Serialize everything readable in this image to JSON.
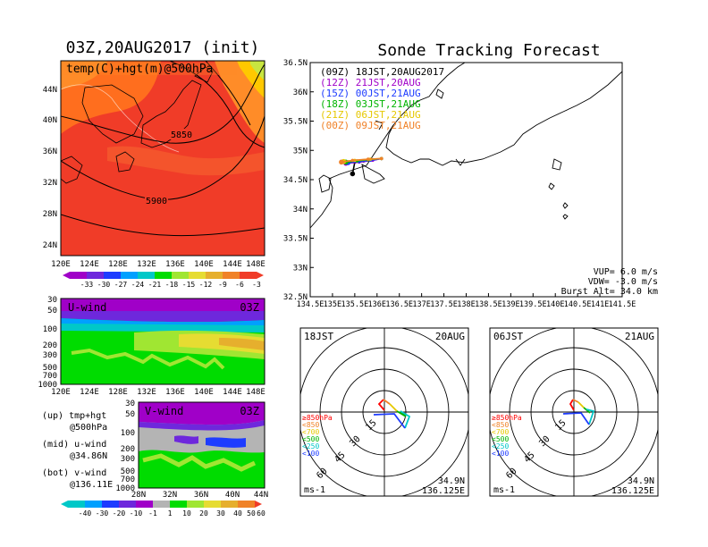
{
  "left_title": "03Z,20AUG2017 (init)",
  "right_title": "Sonde Tracking Forecast",
  "top_map": {
    "label": "temp(C)+hgt(m)@500hPa",
    "contours": [
      "5850",
      "5900"
    ],
    "lat_ticks": [
      "44N",
      "40N",
      "36N",
      "32N",
      "28N",
      "24N"
    ],
    "lon_ticks": [
      "120E",
      "124E",
      "128E",
      "132E",
      "136E",
      "140E",
      "144E",
      "148E"
    ],
    "colorbar": [
      "-33",
      "-30",
      "-27",
      "-24",
      "-21",
      "-18",
      "-15",
      "-12",
      "-9",
      "-6",
      "-3"
    ]
  },
  "uwind": {
    "label": "U-wind",
    "time": "03Z",
    "p_ticks": [
      "30",
      "50",
      "100",
      "200",
      "300",
      "500",
      "700",
      "1000"
    ],
    "lon_ticks": [
      "120E",
      "124E",
      "128E",
      "132E",
      "136E",
      "140E",
      "144E",
      "148E"
    ]
  },
  "vwind": {
    "label": "V-wind",
    "time": "03Z",
    "p_ticks": [
      "30",
      "50",
      "100",
      "200",
      "300",
      "500",
      "700",
      "1000"
    ],
    "lat_ticks": [
      "28N",
      "32N",
      "36N",
      "40N",
      "44N"
    ]
  },
  "legend_text": [
    "(up) tmp+hgt",
    "@500hPa",
    "(mid) u-wind",
    "@34.86N",
    "(bot) v-wind",
    "@136.11E"
  ],
  "wind_colorbar": [
    "-40",
    "-30",
    "-20",
    "-10",
    "-1",
    "1",
    "10",
    "20",
    "30",
    "40",
    "50",
    "60"
  ],
  "track_map": {
    "lat_ticks": [
      "36.5N",
      "36N",
      "35.5N",
      "35N",
      "34.5N",
      "34N",
      "33.5N",
      "33N",
      "32.5N"
    ],
    "lon_ticks": [
      "134.5E",
      "135E",
      "135.5E",
      "136E",
      "136.5E",
      "137E",
      "137.5E",
      "138E",
      "138.5E",
      "139E",
      "139.5E",
      "140E",
      "140.5E",
      "141E",
      "141.5E"
    ],
    "legend": [
      {
        "text": "(09Z)  18JST,20AUG2017",
        "color": "#000000"
      },
      {
        "text": "(12Z)  21JST,20AUG",
        "color": "#a000c8"
      },
      {
        "text": "(15Z)  00JST,21AUG",
        "color": "#1e3cff"
      },
      {
        "text": "(18Z)  03JST,21AUG",
        "color": "#00b400"
      },
      {
        "text": "(21Z)  06JST,21AUG",
        "color": "#e6c800"
      },
      {
        "text": "(00Z)  09JST,21AUG",
        "color": "#f08228"
      }
    ],
    "params": [
      "VUP=  6.0 m/s",
      "VDW= -3.0 m/s",
      "Burst Alt= 34.0 km"
    ]
  },
  "hodo_left": {
    "time": "18JST",
    "date": "20AUG",
    "lat": "34.9N",
    "lon": "136.125E",
    "unit": "ms-1",
    "rings": [
      "15",
      "30",
      "45",
      "60"
    ],
    "levels": [
      {
        "text": "≥850hPa",
        "color": "#ff0000"
      },
      {
        "text": "<850",
        "color": "#f08228"
      },
      {
        "text": "<700",
        "color": "#e6c800"
      },
      {
        "text": "<500",
        "color": "#00b400"
      },
      {
        "text": "<250",
        "color": "#00c8c8"
      },
      {
        "text": "<100",
        "color": "#1e3cff"
      }
    ]
  },
  "hodo_right": {
    "time": "06JST",
    "date": "21AUG",
    "lat": "34.9N",
    "lon": "136.125E",
    "unit": "ms-1",
    "rings": [
      "15",
      "30",
      "45",
      "60"
    ],
    "levels": [
      {
        "text": "≥850hPa",
        "color": "#ff0000"
      },
      {
        "text": "<850",
        "color": "#f08228"
      },
      {
        "text": "<700",
        "color": "#e6c800"
      },
      {
        "text": "<500",
        "color": "#00b400"
      },
      {
        "text": "<250",
        "color": "#00c8c8"
      },
      {
        "text": "<100",
        "color": "#1e3cff"
      }
    ]
  },
  "chart_data": {
    "type": "scatter",
    "title": "Sonde Tracking Forecast",
    "xlim": [
      134.5,
      141.5
    ],
    "ylim": [
      32.5,
      36.5
    ],
    "series": [
      {
        "name": "(09Z)  18JST,20AUG2017",
        "x": [
          136.1,
          135.9,
          135.7,
          135.5,
          135.45
        ],
        "y": [
          34.86,
          34.84,
          34.82,
          34.8,
          34.6
        ]
      },
      {
        "name": "(12Z)  21JST,20AUG",
        "x": [
          136.1,
          135.9,
          135.6,
          135.3
        ],
        "y": [
          34.86,
          34.83,
          34.8,
          34.78
        ]
      },
      {
        "name": "(15Z)  00JST,21AUG",
        "x": [
          136.1,
          135.85,
          135.6,
          135.35
        ],
        "y": [
          34.86,
          34.83,
          34.81,
          34.79
        ]
      },
      {
        "name": "(18Z)  03JST,21AUG",
        "x": [
          136.1,
          135.8,
          135.55,
          135.3
        ],
        "y": [
          34.86,
          34.84,
          34.82,
          34.8
        ]
      },
      {
        "name": "(21Z)  06JST,21AUG",
        "x": [
          136.1,
          135.85,
          135.5,
          135.25
        ],
        "y": [
          34.86,
          34.85,
          34.83,
          34.81
        ]
      },
      {
        "name": "(00Z)  09JST,21AUG",
        "x": [
          136.1,
          135.8,
          135.45,
          135.2
        ],
        "y": [
          34.86,
          34.85,
          34.83,
          34.8
        ]
      }
    ]
  }
}
